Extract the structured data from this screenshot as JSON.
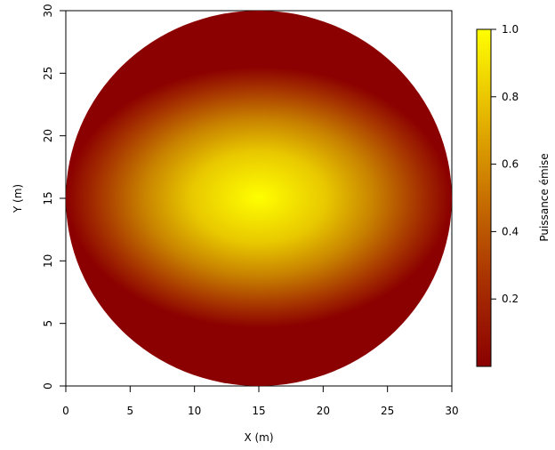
{
  "chart_data": {
    "type": "heatmap",
    "title": "",
    "xlabel": "X (m)",
    "ylabel": "Y (m)",
    "xlim": [
      0,
      30
    ],
    "ylim": [
      0,
      30
    ],
    "x_ticks": [
      0,
      5,
      10,
      15,
      20,
      25,
      30
    ],
    "y_ticks": [
      0,
      5,
      10,
      15,
      20,
      25,
      30
    ],
    "field": {
      "shape": "disk",
      "center": [
        15,
        15
      ],
      "radius": 15,
      "peak_value": 1.0,
      "min_value": 0.02,
      "description_of_gradient": "maximum at centre, decreasing faster along Y than along X"
    },
    "colorbar": {
      "label": "Puissance émise",
      "range": [
        0.0,
        1.0
      ],
      "ticks": [
        0.2,
        0.4,
        0.6,
        0.8,
        1.0
      ],
      "tick_labels": [
        "0.2",
        "0.4",
        "0.6",
        "0.8",
        "1.0"
      ],
      "colormap": "heat",
      "color_low": "#8b0000",
      "color_mid": "#c87000",
      "color_high": "#ffff00"
    },
    "grid": false,
    "legend": "right"
  }
}
